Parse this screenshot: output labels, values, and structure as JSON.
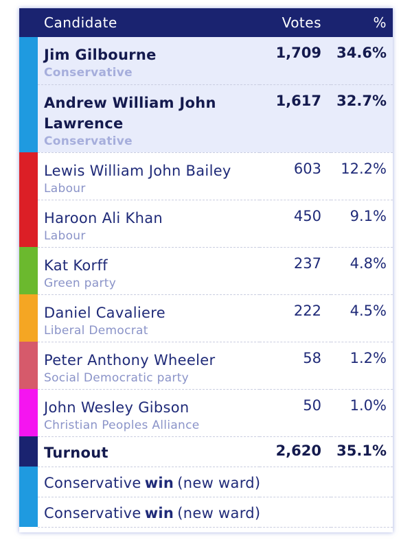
{
  "header": {
    "candidate": "Candidate",
    "votes": "Votes",
    "percent": "%"
  },
  "candidates": [
    {
      "name": "Jim Gilbourne",
      "party": "Conservative",
      "votes": "1,709",
      "percent": "34.6%",
      "color": "#1f9ae0",
      "elected": true
    },
    {
      "name": "Andrew William John Lawrence",
      "party": "Conservative",
      "votes": "1,617",
      "percent": "32.7%",
      "color": "#1f9ae0",
      "elected": true
    },
    {
      "name": "Lewis William John Bailey",
      "party": "Labour",
      "votes": "603",
      "percent": "12.2%",
      "color": "#dc1f26",
      "elected": false
    },
    {
      "name": "Haroon Ali Khan",
      "party": "Labour",
      "votes": "450",
      "percent": "9.1%",
      "color": "#dc1f26",
      "elected": false
    },
    {
      "name": "Kat Korff",
      "party": "Green party",
      "votes": "237",
      "percent": "4.8%",
      "color": "#6bb92e",
      "elected": false
    },
    {
      "name": "Daniel Cavaliere",
      "party": "Liberal Democrat",
      "votes": "222",
      "percent": "4.5%",
      "color": "#f5a623",
      "elected": false
    },
    {
      "name": "Peter Anthony Wheeler",
      "party": "Social Democratic party",
      "votes": "58",
      "percent": "1.2%",
      "color": "#d65a6b",
      "elected": false
    },
    {
      "name": "John Wesley Gibson",
      "party": "Christian Peoples Alliance",
      "votes": "50",
      "percent": "1.0%",
      "color": "#f515f0",
      "elected": false
    }
  ],
  "turnout": {
    "label": "Turnout",
    "votes": "2,620",
    "percent": "35.1%",
    "color": "#1a2370"
  },
  "results": [
    {
      "party": "Conservative",
      "win": "win",
      "note": "(new ward)",
      "color": "#1f9ae0"
    },
    {
      "party": "Conservative",
      "win": "win",
      "note": "(new ward)",
      "color": "#1f9ae0"
    }
  ]
}
